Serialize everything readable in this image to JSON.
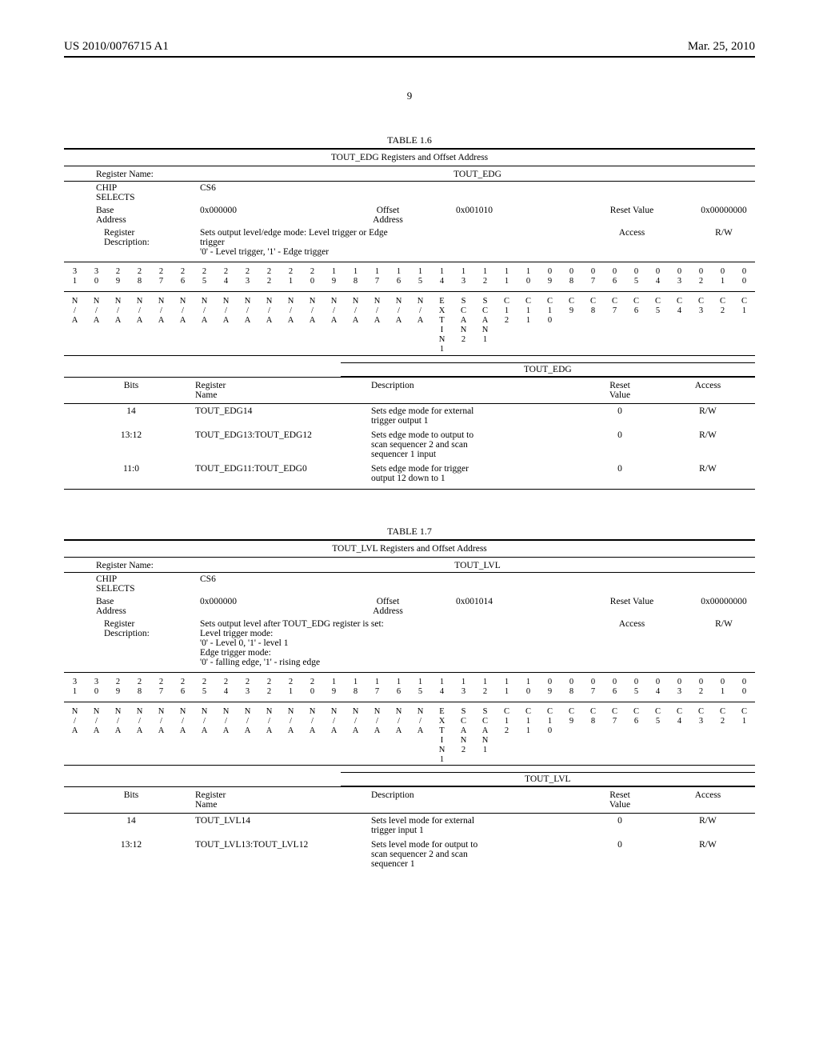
{
  "header": {
    "patent_no": "US 2010/0076715 A1",
    "pub_date": "Mar. 25, 2010",
    "page": "9"
  },
  "colors": {
    "ink": "#000000",
    "paper": "#ffffff"
  },
  "typography": {
    "family": "Times New Roman",
    "body_pt": 11.5,
    "small_pt": 10.5
  },
  "table16": {
    "caption": "TABLE 1.6",
    "subtitle": "TOUT_EDG Registers and Offset Address",
    "register_name_label": "Register Name:",
    "register_name_value": "TOUT_EDG",
    "chip_selects_label": "CHIP\nSELECTS",
    "chip_selects_value": "CS6",
    "base_addr_label": "Base\nAddress",
    "base_addr_value": "0x000000",
    "offset_addr_label": "Offset\nAddress",
    "offset_addr_value": "0x001010",
    "reset_label": "Reset Value",
    "reset_value": "0x00000000",
    "reg_desc_label": "Register\nDescription:",
    "reg_desc_value": "Sets output level/edge mode: Level trigger or Edge\ntrigger\n'0' - Level trigger, '1' - Edge trigger",
    "access_label": "Access",
    "access_value": "R/W",
    "bit_numbers": [
      "3\n1",
      "3\n0",
      "2\n9",
      "2\n8",
      "2\n7",
      "2\n6",
      "2\n5",
      "2\n4",
      "2\n3",
      "2\n2",
      "2\n1",
      "2\n0",
      "1\n9",
      "1\n8",
      "1\n7",
      "1\n6",
      "1\n5",
      "1\n4",
      "1\n3",
      "1\n2",
      "1\n1",
      "1\n0",
      "0\n9",
      "0\n8",
      "0\n7",
      "0\n6",
      "0\n5",
      "0\n4",
      "0\n3",
      "0\n2",
      "0\n1",
      "0\n0"
    ],
    "bit_labels": [
      "N\n/\nA",
      "N\n/\nA",
      "N\n/\nA",
      "N\n/\nA",
      "N\n/\nA",
      "N\n/\nA",
      "N\n/\nA",
      "N\n/\nA",
      "N\n/\nA",
      "N\n/\nA",
      "N\n/\nA",
      "N\n/\nA",
      "N\n/\nA",
      "N\n/\nA",
      "N\n/\nA",
      "N\n/\nA",
      "N\n/\nA",
      "E\nX\nT\nI\nN\n1",
      "S\nC\nA\nN\n2",
      "S\nC\nA\nN\n1",
      "C\n1\n2",
      "C\n1\n1",
      "C\n1\n0",
      "C\n9",
      "C\n8",
      "C\n7",
      "C\n6",
      "C\n5",
      "C\n4",
      "C\n3",
      "C\n2",
      "C\n1"
    ],
    "field_title": "TOUT_EDG",
    "field_hdr": {
      "bits": "Bits",
      "name": "Register\nName",
      "desc": "Description",
      "reset": "Reset\nValue",
      "access": "Access"
    },
    "fields": [
      {
        "bits": "14",
        "name": "TOUT_EDG14",
        "desc": "Sets edge mode for external\ntrigger output 1",
        "reset": "0",
        "access": "R/W"
      },
      {
        "bits": "13:12",
        "name": "TOUT_EDG13:TOUT_EDG12",
        "desc": "Sets edge mode to output to\nscan sequencer 2 and scan\nsequencer 1 input",
        "reset": "0",
        "access": "R/W"
      },
      {
        "bits": "11:0",
        "name": "TOUT_EDG11:TOUT_EDG0",
        "desc": "Sets edge mode for trigger\noutput 12 down to 1",
        "reset": "0",
        "access": "R/W"
      }
    ]
  },
  "table17": {
    "caption": "TABLE 1.7",
    "subtitle": "TOUT_LVL Registers and Offset Address",
    "register_name_label": "Register Name:",
    "register_name_value": "TOUT_LVL",
    "chip_selects_label": "CHIP\nSELECTS",
    "chip_selects_value": "CS6",
    "base_addr_label": "Base\nAddress",
    "base_addr_value": "0x000000",
    "offset_addr_label": "Offset\nAddress",
    "offset_addr_value": "0x001014",
    "reset_label": "Reset Value",
    "reset_value": "0x00000000",
    "reg_desc_label": "Register\nDescription:",
    "reg_desc_value": "Sets output level after TOUT_EDG register is set:\nLevel trigger mode:\n'0' - Level 0, '1' - level 1\nEdge trigger mode:\n'0' - falling edge, '1' - rising edge",
    "access_label": "Access",
    "access_value": "R/W",
    "bit_numbers": [
      "3\n1",
      "3\n0",
      "2\n9",
      "2\n8",
      "2\n7",
      "2\n6",
      "2\n5",
      "2\n4",
      "2\n3",
      "2\n2",
      "2\n1",
      "2\n0",
      "1\n9",
      "1\n8",
      "1\n7",
      "1\n6",
      "1\n5",
      "1\n4",
      "1\n3",
      "1\n2",
      "1\n1",
      "1\n0",
      "0\n9",
      "0\n8",
      "0\n7",
      "0\n6",
      "0\n5",
      "0\n4",
      "0\n3",
      "0\n2",
      "0\n1",
      "0\n0"
    ],
    "bit_labels": [
      "N\n/\nA",
      "N\n/\nA",
      "N\n/\nA",
      "N\n/\nA",
      "N\n/\nA",
      "N\n/\nA",
      "N\n/\nA",
      "N\n/\nA",
      "N\n/\nA",
      "N\n/\nA",
      "N\n/\nA",
      "N\n/\nA",
      "N\n/\nA",
      "N\n/\nA",
      "N\n/\nA",
      "N\n/\nA",
      "N\n/\nA",
      "E\nX\nT\nI\nN\n1",
      "S\nC\nA\nN\n2",
      "S\nC\nA\nN\n1",
      "C\n1\n2",
      "C\n1\n1",
      "C\n1\n0",
      "C\n9",
      "C\n8",
      "C\n7",
      "C\n6",
      "C\n5",
      "C\n4",
      "C\n3",
      "C\n2",
      "C\n1"
    ],
    "field_title": "TOUT_LVL",
    "field_hdr": {
      "bits": "Bits",
      "name": "Register\nName",
      "desc": "Description",
      "reset": "Reset\nValue",
      "access": "Access"
    },
    "fields": [
      {
        "bits": "14",
        "name": "TOUT_LVL14",
        "desc": "Sets level mode for external\ntrigger input 1",
        "reset": "0",
        "access": "R/W"
      },
      {
        "bits": "13:12",
        "name": "TOUT_LVL13:TOUT_LVL12",
        "desc": "Sets level mode for output to\nscan sequencer 2 and scan\nsequencer 1",
        "reset": "0",
        "access": "R/W"
      }
    ]
  }
}
